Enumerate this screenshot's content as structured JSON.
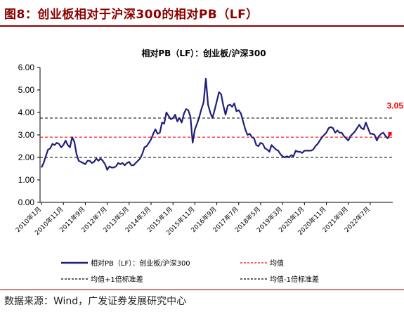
{
  "figure": {
    "title": "图8：创业板相对于沪深300的相对PB（LF）",
    "source": "数据来源：Wind，广发证券发展研究中心"
  },
  "colors": {
    "title": "#8B0000",
    "series": "#1F1F7A",
    "mean": "#FF0000",
    "band": "#000000",
    "last_marker": "#FF0000"
  },
  "chart_data": {
    "type": "line",
    "title": "相对PB（LF）：创业板/沪深300",
    "ylim": [
      0,
      6
    ],
    "yticks": [
      "0.00",
      "1.00",
      "2.00",
      "3.00",
      "4.00",
      "5.00",
      "6.00"
    ],
    "xticks": [
      "2010年1月",
      "2010年11月",
      "2011年9月",
      "2012年7月",
      "2013年5月",
      "2014年3月",
      "2015年1月",
      "2015年11月",
      "2016年9月",
      "2017年7月",
      "2018年5月",
      "2019年3月",
      "2020年1月",
      "2020年11月",
      "2021年9月",
      "2022年7月"
    ],
    "series": [
      {
        "name": "相对PB（LF）：创业板/沪深300",
        "x_range": [
          "2010年1月",
          "2023年2月"
        ],
        "values": [
          1.55,
          1.75,
          2.05,
          2.35,
          2.4,
          2.6,
          2.55,
          2.65,
          2.6,
          2.45,
          2.55,
          2.75,
          2.55,
          2.45,
          2.9,
          2.7,
          2.15,
          1.85,
          1.8,
          1.75,
          1.7,
          1.85,
          1.85,
          1.75,
          1.8,
          1.95,
          1.85,
          1.95,
          1.85,
          1.7,
          1.45,
          1.6,
          1.55,
          1.55,
          1.6,
          1.75,
          1.7,
          1.75,
          1.65,
          1.75,
          1.8,
          1.65,
          1.65,
          1.75,
          1.85,
          1.95,
          2.15,
          2.45,
          2.5,
          2.65,
          2.8,
          3.05,
          3.25,
          3.05,
          3.1,
          3.55,
          3.5,
          4.0,
          3.85,
          3.7,
          3.75,
          3.9,
          3.6,
          3.75,
          3.55,
          3.95,
          4.15,
          4.1,
          3.8,
          2.65,
          3.25,
          3.5,
          3.8,
          4.15,
          4.45,
          5.5,
          4.35,
          4.0,
          3.75,
          4.1,
          4.5,
          4.9,
          4.8,
          4.3,
          3.9,
          4.3,
          4.35,
          4.25,
          4.4,
          4.05,
          4.1,
          3.95,
          3.6,
          3.25,
          3.0,
          3.05,
          2.9,
          2.85,
          2.55,
          2.5,
          2.65,
          2.6,
          2.4,
          2.35,
          2.25,
          2.55,
          2.45,
          2.35,
          2.3,
          2.15,
          2.05,
          2.0,
          2.05,
          2.0,
          2.1,
          2.05,
          2.3,
          2.25,
          2.25,
          2.2,
          2.3,
          2.3,
          2.3,
          2.3,
          2.35,
          2.5,
          2.6,
          2.75,
          2.9,
          3.0,
          3.1,
          3.3,
          3.35,
          3.3,
          3.1,
          3.2,
          3.1,
          3.1,
          2.95,
          2.85,
          2.75,
          2.95,
          3.05,
          3.15,
          3.3,
          3.45,
          3.3,
          3.25,
          3.55,
          3.3,
          3.05,
          3.05,
          3.0,
          2.75,
          2.95,
          3.05,
          3.1,
          2.95,
          2.85,
          3.05
        ]
      }
    ],
    "reference_lines": [
      {
        "name": "均值",
        "value": 2.9,
        "style": "dashed",
        "color": "#FF0000"
      },
      {
        "name": "均值+1倍标准差",
        "value": 3.75,
        "style": "dashed",
        "color": "#000000"
      },
      {
        "name": "均值-1倍标准差",
        "value": 2.0,
        "style": "dashed",
        "color": "#000000"
      }
    ],
    "annotation": {
      "text": "3.05",
      "value": 3.05
    },
    "legend": [
      "相对PB（LF）：创业板/沪深300",
      "均值",
      "均值+1倍标准差",
      "均值-1倍标准差"
    ],
    "legend_position": "bottom",
    "grid": false
  }
}
